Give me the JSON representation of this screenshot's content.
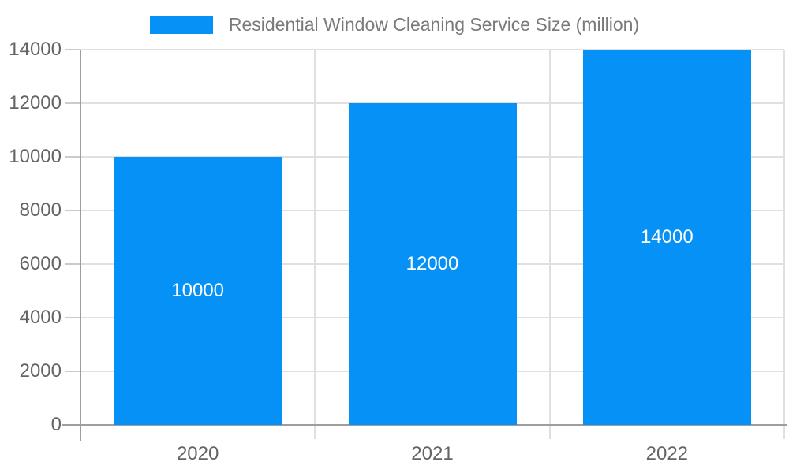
{
  "legend": {
    "label": "Residential Window Cleaning Service Size (million)"
  },
  "chart_data": {
    "type": "bar",
    "title": "Residential Window Cleaning Service Size (million)",
    "categories": [
      "2020",
      "2021",
      "2022"
    ],
    "values": [
      10000,
      12000,
      14000
    ],
    "data_labels": [
      "10000",
      "12000",
      "14000"
    ],
    "xlabel": "",
    "ylabel": "",
    "ylim": [
      0,
      14000
    ],
    "ytick_step": 2000,
    "yticks": [
      0,
      2000,
      4000,
      6000,
      8000,
      10000,
      12000,
      14000
    ],
    "grid": true,
    "legend_position": "top-center",
    "colors": {
      "bar": "#0591F5",
      "bar_label": "#FFFFFF",
      "legend_text": "#7A7A7A",
      "axis_label": "#646464",
      "axis_line": "#9E9E9E",
      "gridline": "#E0E0E0",
      "tick": "#CBCBCB",
      "background": "#FFFFFF"
    }
  }
}
